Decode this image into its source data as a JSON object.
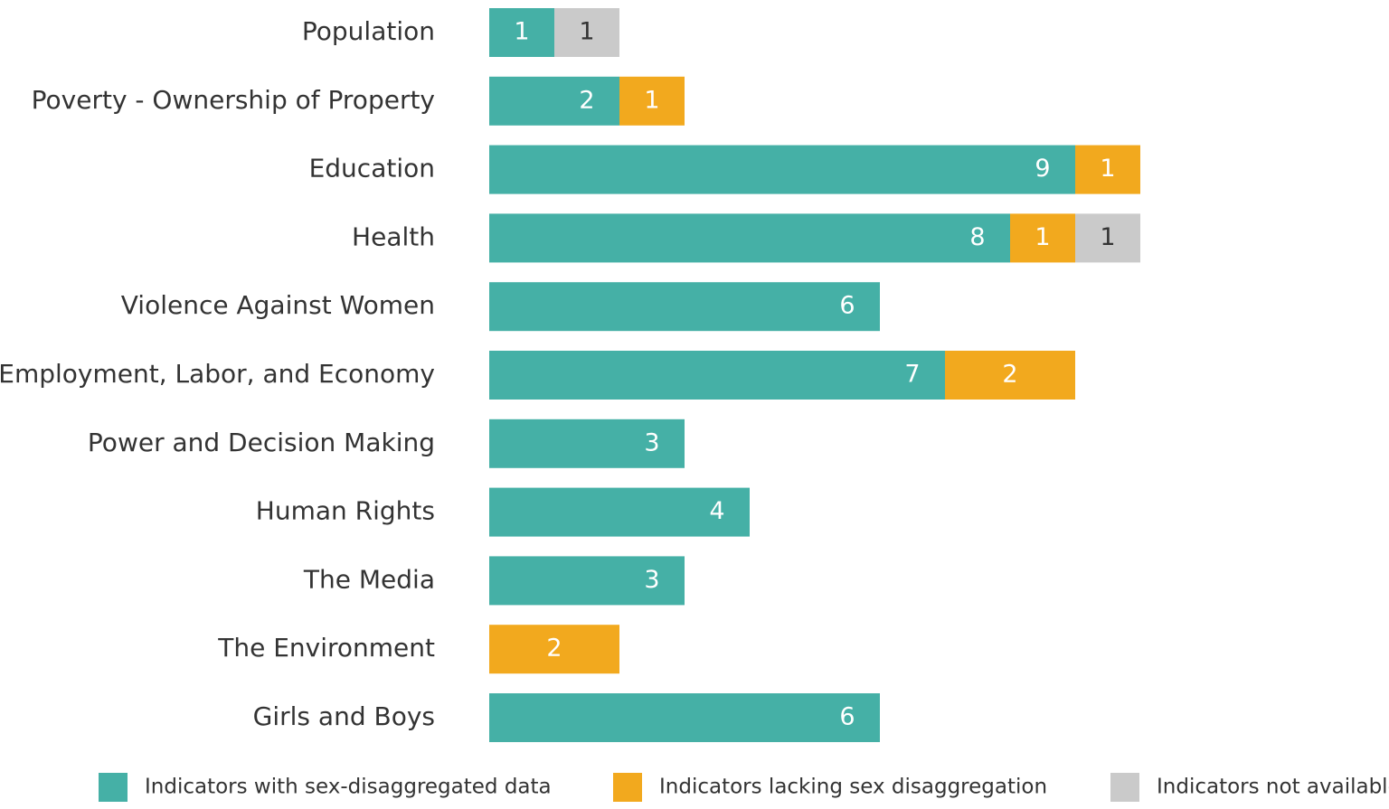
{
  "chart_data": {
    "type": "stacked-bar-horizontal",
    "categories": [
      "Population",
      "Poverty - Ownership of Property",
      "Education",
      "Health",
      "Violence Against Women",
      "Employment, Labor, and Economy",
      "Power and Decision Making",
      "Human Rights",
      "The Media",
      "The Environment",
      "Girls and Boys"
    ],
    "series": [
      {
        "name": "Indicators with sex-disaggregated data",
        "color": "#45b0a6",
        "values": [
          1,
          2,
          9,
          8,
          6,
          7,
          3,
          4,
          3,
          null,
          6
        ]
      },
      {
        "name": "Indicators lacking sex disaggregation",
        "color": "#f2a91e",
        "values": [
          null,
          1,
          1,
          1,
          null,
          2,
          null,
          null,
          null,
          2,
          null
        ]
      },
      {
        "name": "Indicators not available",
        "color": "#cacaca",
        "values": [
          1,
          null,
          null,
          1,
          null,
          null,
          null,
          null,
          null,
          null,
          null
        ]
      }
    ],
    "legend": "bottom"
  }
}
